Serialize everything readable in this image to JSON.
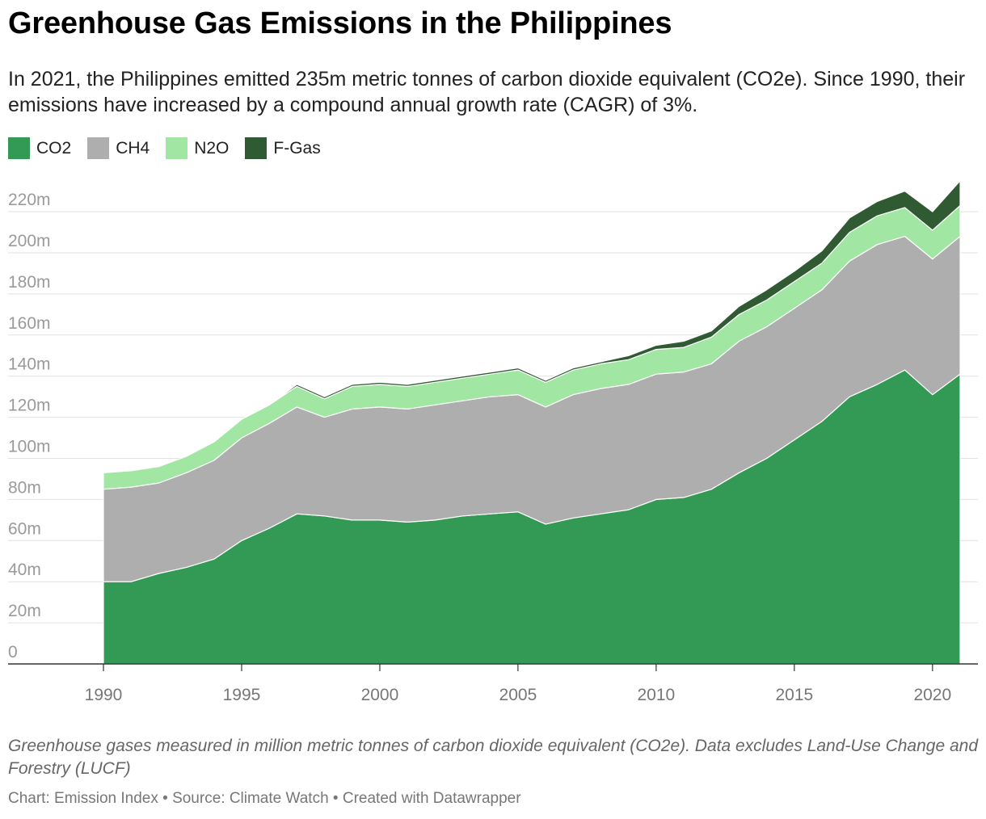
{
  "header": {
    "title": "Greenhouse Gas Emissions in the Philippines",
    "subtitle": "In 2021, the Philippines emitted 235m metric tonnes of carbon dioxide equivalent (CO2e). Since 1990, their emissions have increased by a compound annual growth rate (CAGR) of 3%."
  },
  "legend": [
    {
      "label": "CO2",
      "color": "#339a55"
    },
    {
      "label": "CH4",
      "color": "#aeaeae"
    },
    {
      "label": "N2O",
      "color": "#a2e6a3"
    },
    {
      "label": "F-Gas",
      "color": "#2f5a32"
    }
  ],
  "chart_data": {
    "type": "area",
    "stacked": true,
    "x": [
      1990,
      1991,
      1992,
      1993,
      1994,
      1995,
      1996,
      1997,
      1998,
      1999,
      2000,
      2001,
      2002,
      2003,
      2004,
      2005,
      2006,
      2007,
      2008,
      2009,
      2010,
      2011,
      2012,
      2013,
      2014,
      2015,
      2016,
      2017,
      2018,
      2019,
      2020,
      2021
    ],
    "series": [
      {
        "name": "CO2",
        "color": "#339a55",
        "values": [
          40,
          40,
          44,
          47,
          51,
          60,
          66,
          73,
          72,
          70,
          70,
          69,
          70,
          72,
          73,
          74,
          68,
          71,
          73,
          75,
          80,
          81,
          85,
          93,
          100,
          109,
          118,
          130,
          136,
          143,
          131,
          141
        ]
      },
      {
        "name": "CH4",
        "color": "#aeaeae",
        "values": [
          45,
          46,
          44,
          46,
          48,
          50,
          51,
          52,
          48,
          54,
          55,
          55,
          56,
          56,
          57,
          57,
          57,
          60,
          61,
          61,
          61,
          61,
          61,
          64,
          64,
          64,
          64,
          66,
          68,
          65,
          66,
          67
        ]
      },
      {
        "name": "N2O",
        "color": "#a2e6a3",
        "values": [
          8,
          8,
          8,
          8,
          9,
          9,
          9,
          10,
          9,
          11,
          11,
          11,
          11,
          11,
          11,
          12,
          12,
          12,
          12,
          12,
          12,
          12,
          13,
          13,
          13,
          13,
          13,
          14,
          14,
          14,
          14,
          15
        ]
      },
      {
        "name": "F-Gas",
        "color": "#2f5a32",
        "values": [
          0,
          0,
          0,
          0,
          0,
          0,
          0,
          1,
          1,
          1,
          1,
          1,
          1,
          1,
          1,
          1,
          1,
          1,
          1,
          2,
          2,
          3,
          3,
          4,
          5,
          5,
          6,
          7,
          7,
          8,
          9,
          12
        ]
      }
    ],
    "y_ticks": [
      0,
      20,
      40,
      60,
      80,
      100,
      120,
      140,
      160,
      180,
      200,
      220
    ],
    "y_tick_labels": [
      "0",
      "20m",
      "40m",
      "60m",
      "80m",
      "100m",
      "120m",
      "140m",
      "160m",
      "180m",
      "200m",
      "220m"
    ],
    "x_ticks": [
      1990,
      1995,
      2000,
      2005,
      2010,
      2015,
      2020
    ],
    "ylim": [
      0,
      235
    ],
    "grid": true
  },
  "notes": "Greenhouse gases measured in million metric tonnes of carbon dioxide equivalent (CO2e). Data excludes Land-Use Change and Forestry (LUCF)",
  "credits": "Chart: Emission Index • Source: Climate Watch • Created with Datawrapper"
}
